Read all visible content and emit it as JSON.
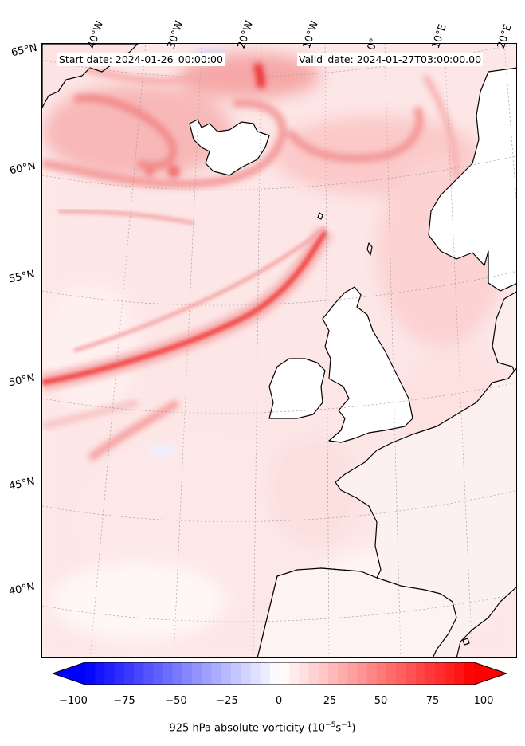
{
  "header": {
    "start_date": "Start date: 2024-01-26_00:00:00",
    "valid_date": "Valid_date: 2024-01-27T03:00:00.00"
  },
  "lon_labels": [
    "40°W",
    "30°W",
    "20°W",
    "10°W",
    "0°",
    "10°E",
    "20°E"
  ],
  "lat_labels": [
    "65°N",
    "60°N",
    "55°N",
    "50°N",
    "45°N",
    "40°N"
  ],
  "colorbar": {
    "ticks": [
      "−100",
      "−75",
      "−50",
      "−25",
      "0",
      "25",
      "50",
      "75",
      "100"
    ],
    "label": "925 hPa absolute vorticity (10",
    "label_exp": "−5",
    "label_unit": "s",
    "label_exp2": "−1",
    "label_close": ")",
    "min": -100,
    "max": 100,
    "color_min": "#0000ff",
    "color_mid": "#ffffff",
    "color_max": "#ff0000"
  }
}
